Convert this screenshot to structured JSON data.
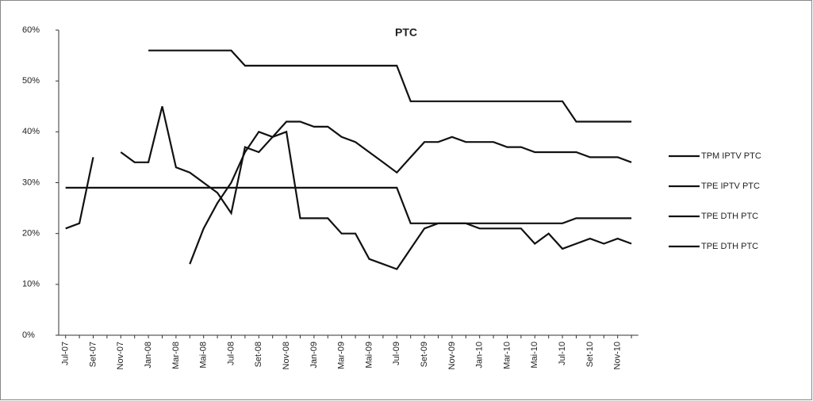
{
  "chart_data": {
    "type": "line",
    "title": "PTC",
    "categories": [
      "Jul-07",
      null,
      "Set-07",
      null,
      "Nov-07",
      null,
      "Jan-08",
      null,
      "Mar-08",
      null,
      "Mai-08",
      null,
      "Jul-08",
      null,
      "Set-08",
      null,
      "Nov-08",
      null,
      "Jan-09",
      null,
      "Mar-09",
      null,
      "Mai-09",
      null,
      "Jul-09",
      null,
      "Set-09",
      null,
      "Nov-09",
      null,
      "Jan-10",
      null,
      "Mar-10",
      null,
      "Mai-10",
      null,
      "Jul-10",
      null,
      "Set-10",
      null,
      "Nov-10",
      null
    ],
    "series": [
      {
        "name": "TPM IPTV PTC",
        "color": "#111111",
        "values": [
          null,
          null,
          null,
          null,
          null,
          null,
          56,
          56,
          56,
          56,
          56,
          56,
          56,
          53,
          53,
          53,
          53,
          53,
          53,
          53,
          53,
          53,
          53,
          53,
          53,
          46,
          46,
          46,
          46,
          46,
          46,
          46,
          46,
          46,
          46,
          46,
          46,
          42,
          42,
          42,
          42,
          42
        ]
      },
      {
        "name": "TPE IPTV PTC",
        "color": "#111111",
        "values": [
          null,
          null,
          null,
          null,
          null,
          null,
          null,
          null,
          null,
          14,
          21,
          26,
          30,
          36,
          40,
          39,
          42,
          42,
          41,
          41,
          39,
          38,
          36,
          34,
          32,
          35,
          38,
          38,
          39,
          38,
          38,
          38,
          37,
          37,
          36,
          36,
          36,
          36,
          35,
          35,
          35,
          34
        ]
      },
      {
        "name": "TPE DTH PTC",
        "color": "#111111",
        "values": [
          29,
          29,
          29,
          29,
          29,
          29,
          29,
          29,
          29,
          29,
          29,
          29,
          29,
          29,
          29,
          29,
          29,
          29,
          29,
          29,
          29,
          29,
          29,
          29,
          29,
          22,
          22,
          22,
          22,
          22,
          22,
          22,
          22,
          22,
          22,
          22,
          22,
          23,
          23,
          23,
          23,
          23
        ]
      },
      {
        "name": "TPE DTH PTC",
        "color": "#111111",
        "values": [
          21,
          22,
          35,
          null,
          36,
          34,
          34,
          45,
          33,
          32,
          30,
          28,
          24,
          37,
          36,
          39,
          40,
          23,
          23,
          23,
          20,
          20,
          15,
          14,
          13,
          17,
          21,
          22,
          22,
          22,
          21,
          21,
          21,
          21,
          18,
          20,
          17,
          18,
          19,
          18,
          19,
          18
        ]
      }
    ],
    "ylim": [
      0,
      60
    ],
    "yticks": [
      {
        "value": 0,
        "label": "0%"
      },
      {
        "value": 10,
        "label": "10%"
      },
      {
        "value": 20,
        "label": "20%"
      },
      {
        "value": 30,
        "label": "30%"
      },
      {
        "value": 40,
        "label": "40%"
      },
      {
        "value": 50,
        "label": "50%"
      },
      {
        "value": 60,
        "label": "60%"
      }
    ],
    "grid": false,
    "legend": "right"
  }
}
